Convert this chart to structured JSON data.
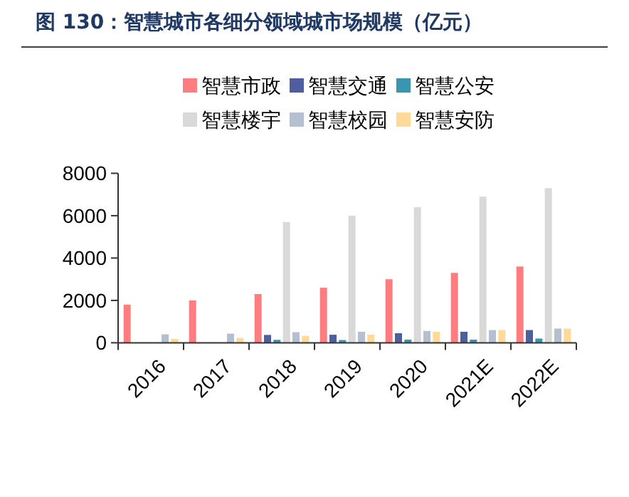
{
  "chart_data": {
    "type": "bar",
    "title": "图 130：智慧城市各细分领域城市场规模（亿元）",
    "categories": [
      "2016",
      "2017",
      "2018",
      "2019",
      "2020",
      "2021E",
      "2022E"
    ],
    "series": [
      {
        "name": "智慧市政",
        "color": "#ff7c80",
        "values": [
          1800,
          2000,
          2300,
          2600,
          3000,
          3300,
          3600
        ]
      },
      {
        "name": "智慧交通",
        "color": "#4f5f9e",
        "values": [
          null,
          null,
          370,
          380,
          450,
          520,
          600
        ]
      },
      {
        "name": "智慧公安",
        "color": "#3a95b0",
        "values": [
          null,
          null,
          140,
          130,
          150,
          150,
          200
        ]
      },
      {
        "name": "智慧楼宇",
        "color": "#d9d9d9",
        "values": [
          null,
          null,
          5700,
          6000,
          6400,
          6900,
          7300
        ]
      },
      {
        "name": "智慧校园",
        "color": "#b4bfd2",
        "values": [
          400,
          430,
          500,
          520,
          560,
          600,
          670
        ]
      },
      {
        "name": "智慧安防",
        "color": "#ffd998",
        "values": [
          180,
          230,
          330,
          380,
          520,
          600,
          670
        ]
      }
    ],
    "ylim": [
      0,
      8000
    ],
    "yticks": [
      0,
      2000,
      4000,
      6000,
      8000
    ],
    "legend": "top"
  }
}
